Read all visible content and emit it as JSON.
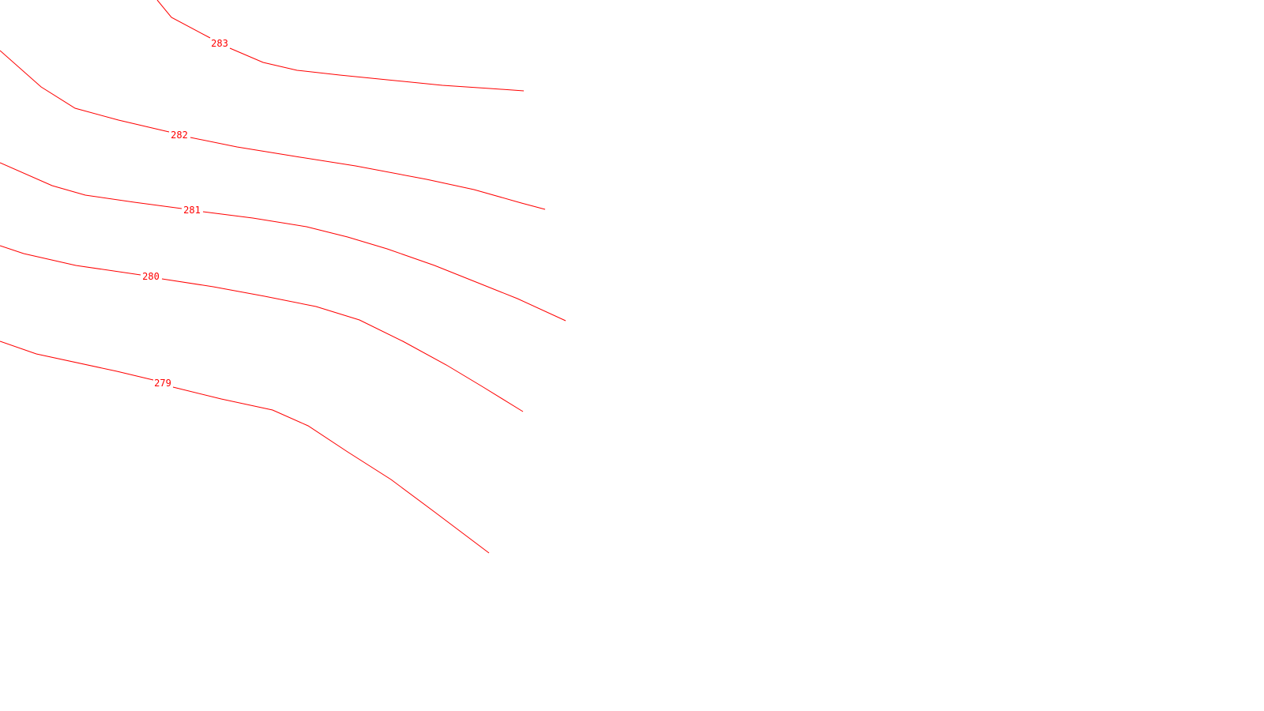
{
  "map": {
    "line_color": "#ff0000",
    "background": "#ffffff",
    "contours": [
      {
        "label": "283"
      },
      {
        "label": "282"
      },
      {
        "label": "281"
      },
      {
        "label": "280"
      },
      {
        "label": "279"
      }
    ]
  }
}
